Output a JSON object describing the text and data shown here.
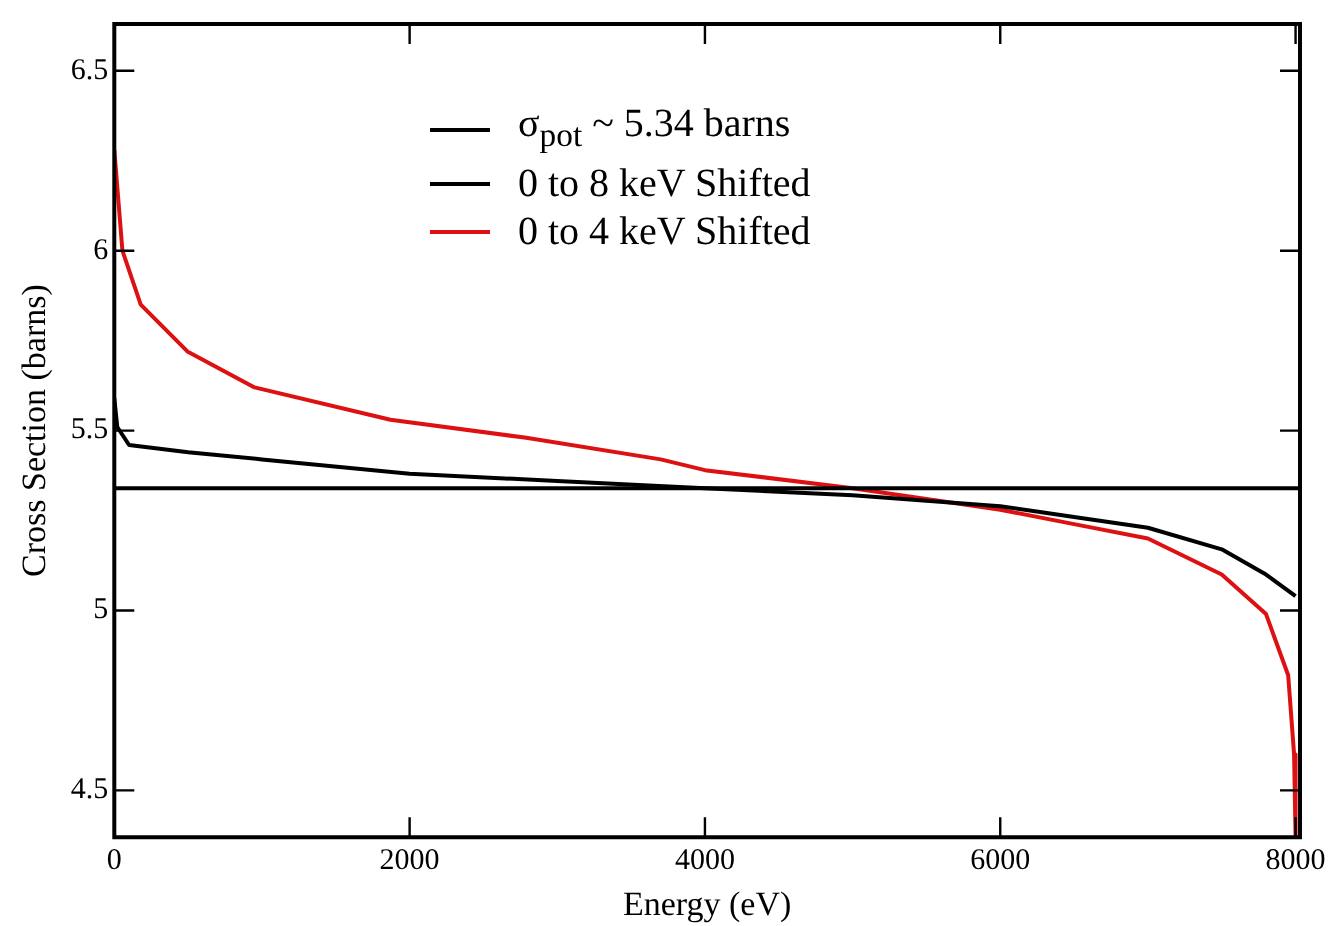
{
  "chart_data": {
    "type": "line",
    "xlabel": "Energy (eV)",
    "ylabel": "Cross Section (barns)",
    "xlim": [
      0,
      8030
    ],
    "ylim": [
      4.37,
      6.63
    ],
    "xticks": [
      0,
      2000,
      4000,
      6000,
      8000
    ],
    "yticks": [
      4.5,
      5,
      5.5,
      6,
      6.5
    ],
    "grid": false,
    "legend": "top",
    "marker": "none",
    "line_style": "solid",
    "series": [
      {
        "name": "σ$_{pot}$ ~ 5.34 barns",
        "color": "#000000",
        "x": [
          0,
          8030
        ],
        "values": [
          5.34,
          5.34
        ]
      },
      {
        "name": "0 to 8 keV Shifted",
        "color": "#000000",
        "x": [
          0,
          20,
          100,
          500,
          1000,
          2000,
          3000,
          4000,
          5000,
          6000,
          6500,
          7000,
          7500,
          7800,
          8000
        ],
        "values": [
          5.59,
          5.51,
          5.46,
          5.44,
          5.42,
          5.38,
          5.36,
          5.34,
          5.32,
          5.29,
          5.26,
          5.23,
          5.17,
          5.1,
          5.04
        ]
      },
      {
        "name": "0 to 4 keV Shifted",
        "color": "#dd1111",
        "x": [
          0,
          55,
          179,
          495,
          950,
          1870,
          2790,
          3700,
          4000,
          5000,
          6000,
          6500,
          7000,
          7500,
          7800,
          7950,
          7990,
          8000
        ],
        "values": [
          6.28,
          6.0,
          5.85,
          5.72,
          5.62,
          5.53,
          5.48,
          5.42,
          5.39,
          5.34,
          5.28,
          5.24,
          5.2,
          5.1,
          4.99,
          4.82,
          4.6,
          4.37
        ]
      }
    ]
  }
}
